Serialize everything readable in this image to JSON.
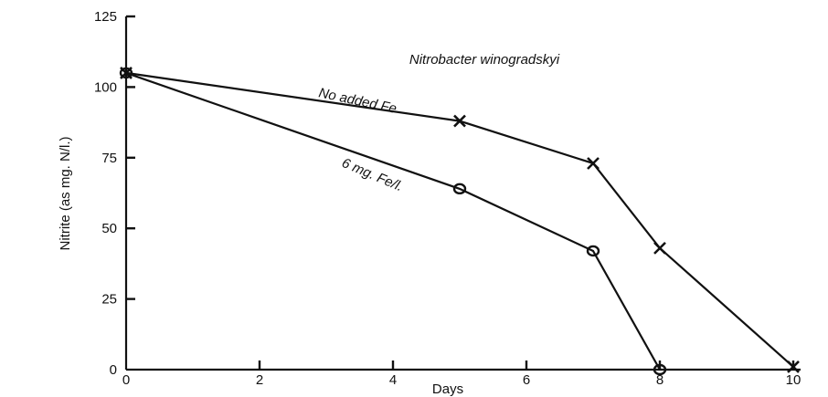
{
  "chart_data": {
    "type": "line",
    "title": "Nitrobacter winogradskyi",
    "xlabel": "Days",
    "ylabel": "Nitrite (as mg. N/l.)",
    "xlim": [
      0,
      10
    ],
    "ylim": [
      0,
      125
    ],
    "x_ticks": [
      0,
      2,
      4,
      6,
      8,
      10
    ],
    "y_ticks": [
      0,
      25,
      50,
      75,
      100,
      125
    ],
    "grid": false,
    "legend": "none",
    "series": [
      {
        "name": "No added Fe",
        "marker": "x",
        "x": [
          0,
          5,
          7,
          8,
          10
        ],
        "y": [
          105,
          88,
          73,
          43,
          1
        ]
      },
      {
        "name": "6 mg. Fe/l.",
        "marker": "o",
        "x": [
          0,
          5,
          7,
          8
        ],
        "y": [
          105,
          64,
          42,
          0
        ]
      }
    ]
  }
}
